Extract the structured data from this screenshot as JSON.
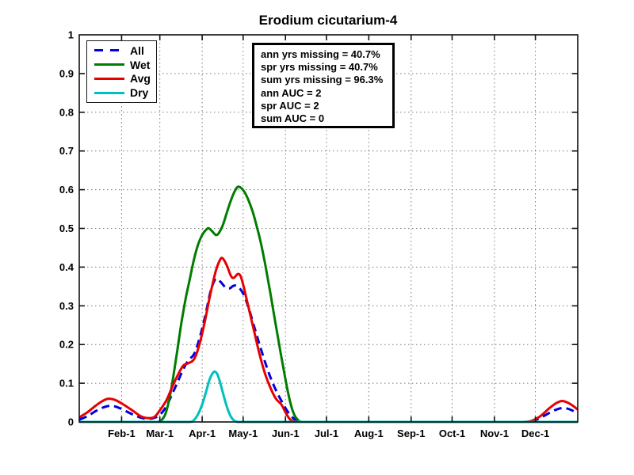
{
  "chart_data": {
    "type": "line",
    "title": "Erodium cicutarium-4",
    "xlabel": "",
    "ylabel": "",
    "x_axis": {
      "unit": "day-of-year",
      "range": [
        0,
        365
      ],
      "ticks": [
        {
          "label": "Feb-1",
          "day": 31
        },
        {
          "label": "Mar-1",
          "day": 59
        },
        {
          "label": "Apr-1",
          "day": 90
        },
        {
          "label": "May-1",
          "day": 120
        },
        {
          "label": "Jun-1",
          "day": 151
        },
        {
          "label": "Jul-1",
          "day": 181
        },
        {
          "label": "Aug-1",
          "day": 212
        },
        {
          "label": "Sep-1",
          "day": 243
        },
        {
          "label": "Oct-1",
          "day": 273
        },
        {
          "label": "Nov-1",
          "day": 304
        },
        {
          "label": "Dec-1",
          "day": 334
        }
      ]
    },
    "y_axis": {
      "range": [
        0,
        1
      ],
      "tick_step": 0.1,
      "tick_labels": [
        "0",
        "0.1",
        "0.2",
        "0.3",
        "0.4",
        "0.5",
        "0.6",
        "0.7",
        "0.8",
        "0.9",
        "1"
      ]
    },
    "grid": "dotted",
    "grid_color": "#7a7a7a",
    "axis_color": "#111111",
    "legend_position": "top-left",
    "series": [
      {
        "name": "All",
        "color": "#0000e0",
        "style": "dashed",
        "points": [
          [
            0,
            0.006
          ],
          [
            6,
            0.015
          ],
          [
            12,
            0.028
          ],
          [
            18,
            0.038
          ],
          [
            23,
            0.042
          ],
          [
            28,
            0.038
          ],
          [
            33,
            0.03
          ],
          [
            40,
            0.018
          ],
          [
            46,
            0.01
          ],
          [
            51,
            0.008
          ],
          [
            56,
            0.012
          ],
          [
            60,
            0.022
          ],
          [
            64,
            0.042
          ],
          [
            68,
            0.072
          ],
          [
            72,
            0.103
          ],
          [
            76,
            0.135
          ],
          [
            80,
            0.16
          ],
          [
            84,
            0.175
          ],
          [
            88,
            0.215
          ],
          [
            92,
            0.27
          ],
          [
            96,
            0.335
          ],
          [
            99,
            0.365
          ],
          [
            101,
            0.37
          ],
          [
            104,
            0.36
          ],
          [
            107,
            0.348
          ],
          [
            110,
            0.345
          ],
          [
            113,
            0.352
          ],
          [
            116,
            0.35
          ],
          [
            120,
            0.332
          ],
          [
            124,
            0.295
          ],
          [
            128,
            0.247
          ],
          [
            132,
            0.2
          ],
          [
            136,
            0.155
          ],
          [
            140,
            0.115
          ],
          [
            144,
            0.082
          ],
          [
            148,
            0.055
          ],
          [
            152,
            0.03
          ],
          [
            156,
            0.012
          ],
          [
            160,
            0.003
          ],
          [
            164,
            0
          ],
          [
            185,
            0
          ],
          [
            220,
            0
          ],
          [
            260,
            0
          ],
          [
            300,
            0
          ],
          [
            326,
            0
          ],
          [
            333,
            0.004
          ],
          [
            339,
            0.013
          ],
          [
            345,
            0.025
          ],
          [
            350,
            0.033
          ],
          [
            354,
            0.036
          ],
          [
            358,
            0.034
          ],
          [
            362,
            0.028
          ],
          [
            365,
            0.022
          ]
        ]
      },
      {
        "name": "Wet",
        "color": "#007d00",
        "style": "solid",
        "points": [
          [
            0,
            0
          ],
          [
            30,
            0
          ],
          [
            50,
            0
          ],
          [
            57,
            0
          ],
          [
            60,
            0.004
          ],
          [
            63,
            0.02
          ],
          [
            66,
            0.06
          ],
          [
            69,
            0.12
          ],
          [
            72,
            0.19
          ],
          [
            75,
            0.26
          ],
          [
            78,
            0.32
          ],
          [
            81,
            0.37
          ],
          [
            84,
            0.42
          ],
          [
            87,
            0.458
          ],
          [
            90,
            0.483
          ],
          [
            93,
            0.497
          ],
          [
            95,
            0.5
          ],
          [
            98,
            0.49
          ],
          [
            100,
            0.483
          ],
          [
            102,
            0.487
          ],
          [
            105,
            0.507
          ],
          [
            108,
            0.54
          ],
          [
            111,
            0.572
          ],
          [
            114,
            0.597
          ],
          [
            116,
            0.607
          ],
          [
            118,
            0.606
          ],
          [
            121,
            0.594
          ],
          [
            124,
            0.572
          ],
          [
            127,
            0.543
          ],
          [
            130,
            0.505
          ],
          [
            133,
            0.462
          ],
          [
            136,
            0.41
          ],
          [
            139,
            0.352
          ],
          [
            142,
            0.29
          ],
          [
            145,
            0.228
          ],
          [
            148,
            0.168
          ],
          [
            151,
            0.11
          ],
          [
            154,
            0.058
          ],
          [
            157,
            0.022
          ],
          [
            160,
            0.006
          ],
          [
            164,
            0
          ],
          [
            185,
            0
          ],
          [
            220,
            0
          ],
          [
            260,
            0
          ],
          [
            300,
            0
          ],
          [
            340,
            0
          ],
          [
            365,
            0
          ]
        ]
      },
      {
        "name": "Avg",
        "color": "#e60000",
        "style": "solid",
        "points": [
          [
            0,
            0.012
          ],
          [
            6,
            0.025
          ],
          [
            12,
            0.042
          ],
          [
            17,
            0.054
          ],
          [
            21,
            0.06
          ],
          [
            26,
            0.057
          ],
          [
            31,
            0.048
          ],
          [
            38,
            0.032
          ],
          [
            45,
            0.015
          ],
          [
            50,
            0.01
          ],
          [
            55,
            0.013
          ],
          [
            59,
            0.03
          ],
          [
            64,
            0.057
          ],
          [
            68,
            0.09
          ],
          [
            72,
            0.12
          ],
          [
            76,
            0.145
          ],
          [
            80,
            0.152
          ],
          [
            84,
            0.162
          ],
          [
            88,
            0.2
          ],
          [
            92,
            0.26
          ],
          [
            96,
            0.33
          ],
          [
            100,
            0.39
          ],
          [
            103,
            0.418
          ],
          [
            105,
            0.423
          ],
          [
            108,
            0.405
          ],
          [
            111,
            0.378
          ],
          [
            113,
            0.372
          ],
          [
            116,
            0.382
          ],
          [
            118,
            0.378
          ],
          [
            120,
            0.355
          ],
          [
            124,
            0.295
          ],
          [
            128,
            0.235
          ],
          [
            132,
            0.175
          ],
          [
            136,
            0.125
          ],
          [
            140,
            0.088
          ],
          [
            144,
            0.06
          ],
          [
            148,
            0.045
          ],
          [
            151,
            0.025
          ],
          [
            154,
            0.008
          ],
          [
            157,
            0.002
          ],
          [
            161,
            0
          ],
          [
            185,
            0
          ],
          [
            220,
            0
          ],
          [
            260,
            0
          ],
          [
            300,
            0
          ],
          [
            325,
            0
          ],
          [
            332,
            0.004
          ],
          [
            338,
            0.016
          ],
          [
            344,
            0.035
          ],
          [
            349,
            0.048
          ],
          [
            353,
            0.054
          ],
          [
            357,
            0.051
          ],
          [
            361,
            0.043
          ],
          [
            365,
            0.032
          ]
        ]
      },
      {
        "name": "Dry",
        "color": "#00bfbf",
        "style": "solid",
        "points": [
          [
            0,
            0
          ],
          [
            40,
            0
          ],
          [
            70,
            0
          ],
          [
            81,
            0
          ],
          [
            84,
            0.005
          ],
          [
            87,
            0.02
          ],
          [
            90,
            0.045
          ],
          [
            93,
            0.08
          ],
          [
            95,
            0.105
          ],
          [
            97,
            0.122
          ],
          [
            99,
            0.13
          ],
          [
            101,
            0.124
          ],
          [
            103,
            0.104
          ],
          [
            105,
            0.078
          ],
          [
            107,
            0.052
          ],
          [
            109,
            0.03
          ],
          [
            111,
            0.014
          ],
          [
            113,
            0.005
          ],
          [
            115,
            0.001
          ],
          [
            118,
            0
          ],
          [
            140,
            0
          ],
          [
            200,
            0
          ],
          [
            280,
            0
          ],
          [
            365,
            0
          ]
        ]
      }
    ]
  },
  "annotation": {
    "lines": [
      "ann yrs missing = 40.7%",
      "spr yrs missing = 40.7%",
      "sum yrs missing = 96.3%",
      "ann AUC = 2",
      "spr AUC = 2",
      "sum AUC = 0"
    ]
  }
}
